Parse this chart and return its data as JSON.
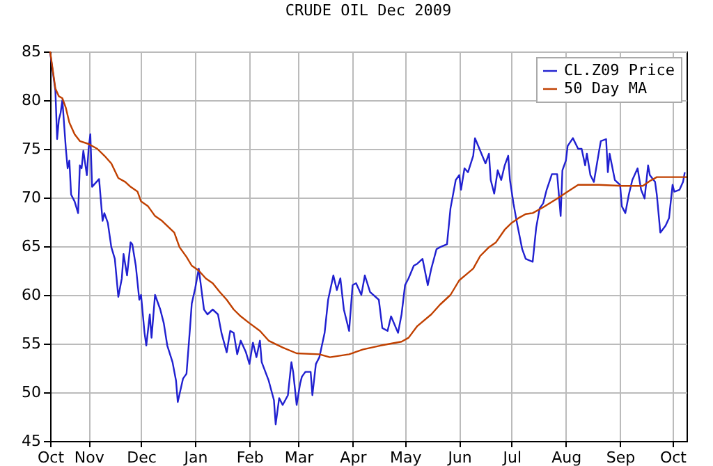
{
  "chart_data": {
    "type": "line",
    "title": "CRUDE OIL Dec 2009",
    "xlim": [
      "2008-10-10",
      "2009-10-09"
    ],
    "xticks": [
      {
        "value": "2008-10-10",
        "label": "Oct"
      },
      {
        "value": "2008-11-01",
        "label": "Nov"
      },
      {
        "value": "2008-12-01",
        "label": "Dec"
      },
      {
        "value": "2009-01-01",
        "label": "Jan"
      },
      {
        "value": "2009-02-01",
        "label": "Feb"
      },
      {
        "value": "2009-03-01",
        "label": "Mar"
      },
      {
        "value": "2009-04-01",
        "label": "Apr"
      },
      {
        "value": "2009-05-01",
        "label": "May"
      },
      {
        "value": "2009-06-01",
        "label": "Jun"
      },
      {
        "value": "2009-07-01",
        "label": "Jul"
      },
      {
        "value": "2009-08-01",
        "label": "Aug"
      },
      {
        "value": "2009-09-01",
        "label": "Sep"
      },
      {
        "value": "2009-10-01",
        "label": "Oct"
      }
    ],
    "ylim": [
      45,
      85
    ],
    "yticks": [
      45,
      50,
      55,
      60,
      65,
      70,
      75,
      80,
      85
    ],
    "grid": true,
    "legend": "top right",
    "series": [
      {
        "name": "CL.Z09 Price",
        "color": "#2020d0",
        "x": [
          "2008-10-10",
          "2008-10-13",
          "2008-10-14",
          "2008-10-15",
          "2008-10-16",
          "2008-10-17",
          "2008-10-19",
          "2008-10-20",
          "2008-10-21",
          "2008-10-22",
          "2008-10-24",
          "2008-10-26",
          "2008-10-27",
          "2008-10-28",
          "2008-10-29",
          "2008-10-31",
          "2008-11-01",
          "2008-11-02",
          "2008-11-03",
          "2008-11-07",
          "2008-11-09",
          "2008-11-10",
          "2008-11-12",
          "2008-11-14",
          "2008-11-16",
          "2008-11-18",
          "2008-11-20",
          "2008-11-21",
          "2008-11-23",
          "2008-11-25",
          "2008-11-26",
          "2008-11-28",
          "2008-11-30",
          "2008-12-01",
          "2008-12-03",
          "2008-12-04",
          "2008-12-06",
          "2008-12-07",
          "2008-12-09",
          "2008-12-12",
          "2008-12-14",
          "2008-12-16",
          "2008-12-19",
          "2008-12-21",
          "2008-12-22",
          "2008-12-25",
          "2008-12-27",
          "2008-12-29",
          "2008-12-30",
          "2009-01-01",
          "2009-01-03",
          "2009-01-06",
          "2009-01-08",
          "2009-01-11",
          "2009-01-14",
          "2009-01-16",
          "2009-01-19",
          "2009-01-21",
          "2009-01-23",
          "2009-01-25",
          "2009-01-27",
          "2009-01-30",
          "2009-02-01",
          "2009-02-03",
          "2009-02-05",
          "2009-02-07",
          "2009-02-08",
          "2009-02-12",
          "2009-02-15",
          "2009-02-16",
          "2009-02-18",
          "2009-02-20",
          "2009-02-23",
          "2009-02-25",
          "2009-02-26",
          "2009-02-28",
          "2009-03-02",
          "2009-03-03",
          "2009-03-05",
          "2009-03-08",
          "2009-03-09",
          "2009-03-11",
          "2009-03-13",
          "2009-03-16",
          "2009-03-18",
          "2009-03-21",
          "2009-03-23",
          "2009-03-25",
          "2009-03-27",
          "2009-03-30",
          "2009-04-01",
          "2009-04-03",
          "2009-04-06",
          "2009-04-08",
          "2009-04-11",
          "2009-04-16",
          "2009-04-18",
          "2009-04-21",
          "2009-04-23",
          "2009-04-27",
          "2009-04-29",
          "2009-05-01",
          "2009-05-03",
          "2009-05-06",
          "2009-05-08",
          "2009-05-11",
          "2009-05-14",
          "2009-05-16",
          "2009-05-19",
          "2009-05-21",
          "2009-05-25",
          "2009-05-27",
          "2009-05-30",
          "2009-06-01",
          "2009-06-02",
          "2009-06-04",
          "2009-06-06",
          "2009-06-09",
          "2009-06-10",
          "2009-06-13",
          "2009-06-16",
          "2009-06-18",
          "2009-06-19",
          "2009-06-21",
          "2009-06-23",
          "2009-06-25",
          "2009-06-27",
          "2009-06-29",
          "2009-06-30",
          "2009-07-02",
          "2009-07-04",
          "2009-07-07",
          "2009-07-09",
          "2009-07-13",
          "2009-07-15",
          "2009-07-17",
          "2009-07-19",
          "2009-07-21",
          "2009-07-24",
          "2009-07-27",
          "2009-07-29",
          "2009-07-30",
          "2009-08-01",
          "2009-08-02",
          "2009-08-05",
          "2009-08-08",
          "2009-08-10",
          "2009-08-12",
          "2009-08-13",
          "2009-08-15",
          "2009-08-17",
          "2009-08-20",
          "2009-08-21",
          "2009-08-24",
          "2009-08-25",
          "2009-08-26",
          "2009-08-29",
          "2009-09-01",
          "2009-09-02",
          "2009-09-04",
          "2009-09-06",
          "2009-09-08",
          "2009-09-11",
          "2009-09-13",
          "2009-09-15",
          "2009-09-17",
          "2009-09-18",
          "2009-09-21",
          "2009-09-22",
          "2009-09-24",
          "2009-09-27",
          "2009-09-29",
          "2009-10-01",
          "2009-10-02",
          "2009-10-05",
          "2009-10-07",
          "2009-10-08"
        ],
        "values": [
          84.9,
          81,
          76,
          78,
          78.7,
          80,
          75,
          73,
          73.8,
          70.3,
          69.6,
          68.4,
          73.3,
          73,
          74.8,
          72.3,
          75,
          76.5,
          71.1,
          71.9,
          67.6,
          68.4,
          67.4,
          64.9,
          63.7,
          59.8,
          61.7,
          64.2,
          62,
          65.4,
          65.2,
          63,
          59.5,
          60,
          56.1,
          54.8,
          58,
          55.6,
          60,
          58.5,
          57.1,
          54.8,
          53.1,
          51.2,
          49,
          51.4,
          51.9,
          56.6,
          59.1,
          60.7,
          62.7,
          58.5,
          58,
          58.5,
          58,
          56.1,
          54.1,
          56.3,
          56.1,
          53.9,
          55.3,
          54.1,
          52.9,
          55.1,
          53.6,
          55.3,
          53.1,
          51.2,
          49.2,
          46.7,
          49.4,
          48.7,
          49.7,
          53.1,
          52.1,
          48.7,
          50.9,
          51.6,
          52.1,
          52.1,
          49.7,
          52.9,
          53.6,
          56.1,
          59.5,
          62,
          60.5,
          61.7,
          58.5,
          56.3,
          61,
          61.2,
          60,
          62,
          60.3,
          59.5,
          56.6,
          56.3,
          57.8,
          56.1,
          58,
          61,
          61.7,
          63,
          63.2,
          63.7,
          61,
          62.7,
          64.7,
          64.9,
          65.2,
          68.9,
          71.8,
          72.3,
          70.8,
          73,
          72.6,
          74.3,
          76.1,
          74.8,
          73.5,
          74.5,
          71.8,
          70.4,
          72.8,
          71.8,
          73.3,
          74.3,
          71.8,
          69.4,
          67.4,
          64.7,
          63.7,
          63.4,
          66.9,
          68.9,
          69.4,
          70.8,
          72.4,
          72.4,
          68.1,
          72.8,
          73.8,
          75.3,
          76.1,
          75,
          75,
          73.3,
          74.5,
          72.3,
          71.6,
          74.8,
          75.8,
          76,
          72.6,
          74.5,
          71.8,
          71.3,
          69.1,
          68.4,
          70.3,
          71.8,
          73,
          70.8,
          69.9,
          73.3,
          72.3,
          71.6,
          70.3,
          66.4,
          67.1,
          67.9,
          71.3,
          70.6,
          70.8,
          71.6,
          72.6
        ]
      },
      {
        "name": "50 Day MA",
        "color": "#c04000",
        "x": [
          "2008-10-10",
          "2008-10-13",
          "2008-10-15",
          "2008-10-17",
          "2008-10-19",
          "2008-10-21",
          "2008-10-24",
          "2008-10-27",
          "2008-11-01",
          "2008-11-06",
          "2008-11-10",
          "2008-11-14",
          "2008-11-18",
          "2008-11-22",
          "2008-11-25",
          "2008-11-29",
          "2008-12-01",
          "2008-12-05",
          "2008-12-09",
          "2008-12-13",
          "2008-12-20",
          "2008-12-23",
          "2008-12-27",
          "2008-12-30",
          "2009-01-03",
          "2009-01-07",
          "2009-01-11",
          "2009-01-15",
          "2009-01-19",
          "2009-01-23",
          "2009-01-27",
          "2009-02-01",
          "2009-02-07",
          "2009-02-12",
          "2009-02-20",
          "2009-02-28",
          "2009-03-13",
          "2009-03-19",
          "2009-03-30",
          "2009-04-07",
          "2009-04-17",
          "2009-04-29",
          "2009-05-03",
          "2009-05-08",
          "2009-05-16",
          "2009-05-21",
          "2009-05-27",
          "2009-06-01",
          "2009-06-05",
          "2009-06-09",
          "2009-06-13",
          "2009-06-18",
          "2009-06-22",
          "2009-06-27",
          "2009-07-01",
          "2009-07-05",
          "2009-07-09",
          "2009-07-13",
          "2009-07-19",
          "2009-07-27",
          "2009-08-02",
          "2009-08-08",
          "2009-08-20",
          "2009-09-02",
          "2009-09-14",
          "2009-09-18",
          "2009-09-22",
          "2009-10-09"
        ],
        "values": [
          85,
          81.2,
          80.4,
          80.2,
          79.2,
          77.7,
          76.5,
          75.8,
          75.5,
          75,
          74.3,
          73.5,
          72,
          71.6,
          71.1,
          70.6,
          69.6,
          69.1,
          68.1,
          67.6,
          66.4,
          64.9,
          63.9,
          63,
          62.5,
          61.7,
          61.2,
          60.3,
          59.5,
          58.5,
          57.8,
          57.1,
          56.3,
          55.3,
          54.6,
          54,
          53.9,
          53.6,
          53.9,
          54.4,
          54.8,
          55.2,
          55.6,
          56.8,
          58,
          59,
          60,
          61.5,
          62.1,
          62.7,
          64,
          64.9,
          65.4,
          66.7,
          67.4,
          67.9,
          68.3,
          68.4,
          69,
          69.9,
          70.6,
          71.3,
          71.3,
          71.2,
          71.2,
          71.7,
          72.1,
          72.1
        ]
      }
    ]
  }
}
